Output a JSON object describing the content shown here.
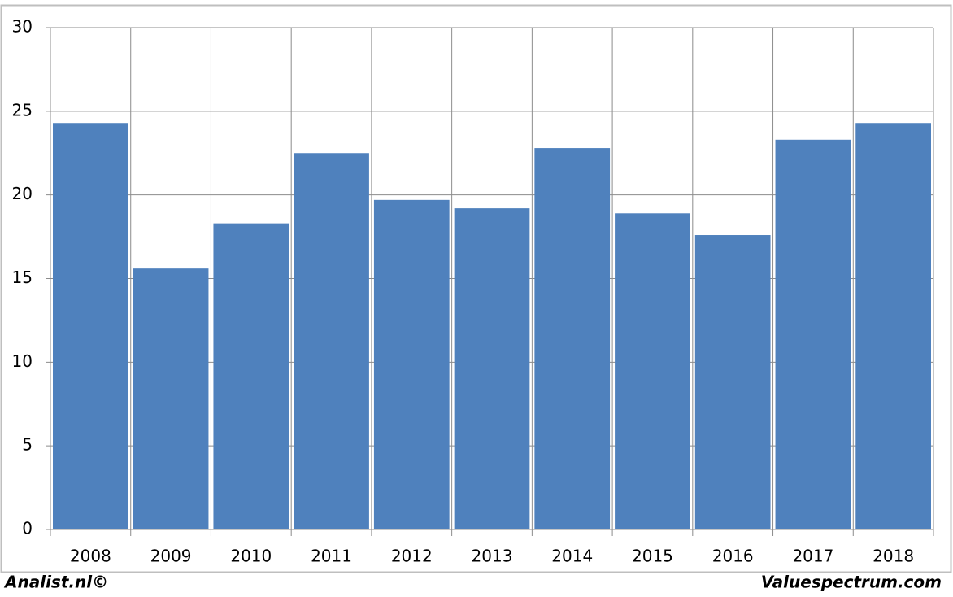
{
  "chart_data": {
    "type": "bar",
    "categories": [
      "2008",
      "2009",
      "2010",
      "2011",
      "2012",
      "2013",
      "2014",
      "2015",
      "2016",
      "2017",
      "2018"
    ],
    "values": [
      24.3,
      15.6,
      18.3,
      22.5,
      19.7,
      19.2,
      22.8,
      18.9,
      17.6,
      23.3,
      24.3
    ],
    "color": "#4f81bd",
    "ylim": [
      0,
      30
    ],
    "yticks": [
      0,
      5,
      10,
      15,
      20,
      25,
      30
    ],
    "grid": true,
    "annotations": [
      "Analist.nl©",
      "Valuespectrum.com"
    ]
  }
}
